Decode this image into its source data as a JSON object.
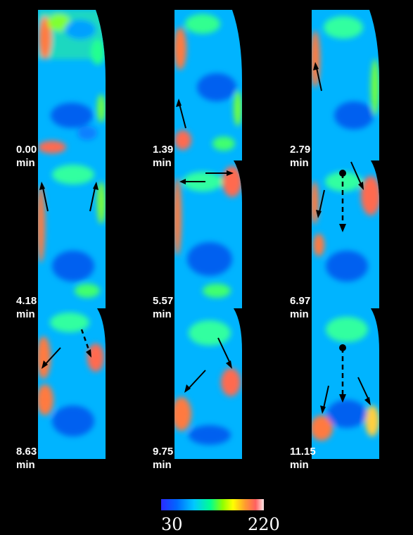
{
  "panels": [
    {
      "time": "0.00",
      "unit": "min"
    },
    {
      "time": "1.39",
      "unit": "min"
    },
    {
      "time": "2.79",
      "unit": "min"
    },
    {
      "time": "4.18",
      "unit": "min"
    },
    {
      "time": "5.57",
      "unit": "min"
    },
    {
      "time": "6.97",
      "unit": "min"
    },
    {
      "time": "8.63",
      "unit": "min"
    },
    {
      "time": "9.75",
      "unit": "min"
    },
    {
      "time": "11.15",
      "unit": "min"
    }
  ],
  "colorbar": {
    "min": "30",
    "max": "220"
  },
  "colors": {
    "background": "#000000",
    "base_tissue": "#00b8ff",
    "low": "#0028f0",
    "mid": "#00ffa0",
    "high": "#ff6a50",
    "arrow": "#000000"
  }
}
